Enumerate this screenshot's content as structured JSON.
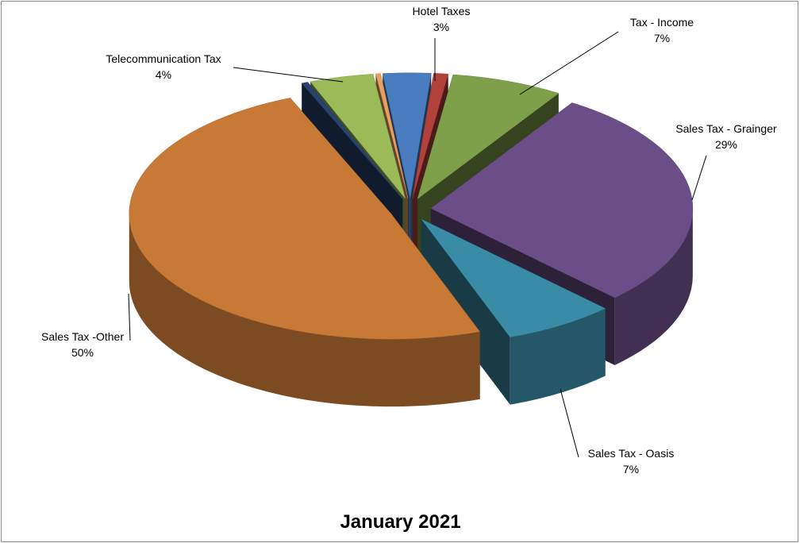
{
  "chart_data": {
    "type": "pie",
    "title": "January 2021",
    "style": "3d-exploded",
    "slices": [
      {
        "name": "Hotel Taxes",
        "percent_label": "3%",
        "value": 3,
        "color": "#4a7dbf"
      },
      {
        "name": "",
        "percent_label": "",
        "value": 0.9,
        "color": "#b2403b"
      },
      {
        "name": "Tax - Income",
        "percent_label": "7%",
        "value": 7,
        "color": "#7ea04a"
      },
      {
        "name": "Sales Tax - Grainger",
        "percent_label": "29%",
        "value": 29,
        "color": "#6b4e87"
      },
      {
        "name": "Sales Tax - Oasis",
        "percent_label": "7%",
        "value": 7,
        "color": "#3a8ca6"
      },
      {
        "name": "Sales Tax -Other",
        "percent_label": "50%",
        "value": 50,
        "color": "#c87936"
      },
      {
        "name": "",
        "percent_label": "",
        "value": 0.4,
        "color": "#27436d"
      },
      {
        "name": "Telecommunication Tax",
        "percent_label": "4%",
        "value": 4,
        "color": "#9bbb59"
      },
      {
        "name": "",
        "percent_label": "",
        "value": 0.3,
        "color": "#e8a060"
      }
    ]
  }
}
